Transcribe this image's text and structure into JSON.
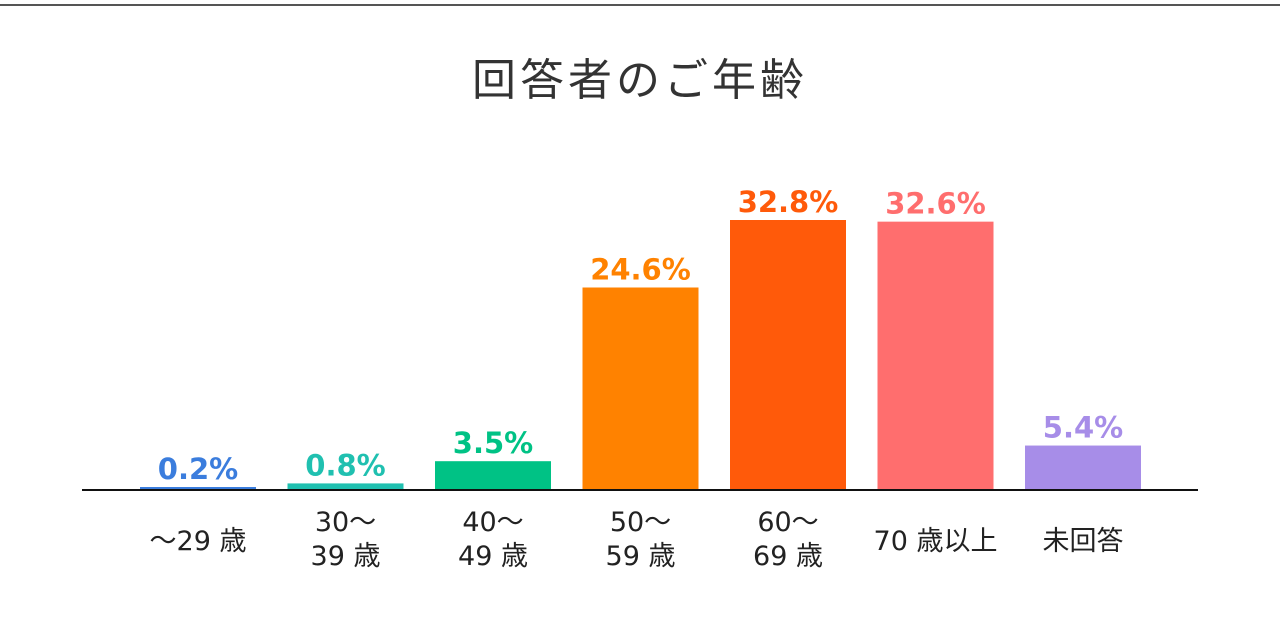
{
  "chart_data": {
    "type": "bar",
    "title": "回答者のご年齢",
    "categories": [
      [
        "～29 歳"
      ],
      [
        "30～",
        "39 歳"
      ],
      [
        "40～",
        "49 歳"
      ],
      [
        "50～",
        "59 歳"
      ],
      [
        "60～",
        "69 歳"
      ],
      [
        "70 歳以上"
      ],
      [
        "未回答"
      ]
    ],
    "values": [
      0.2,
      0.8,
      3.5,
      24.6,
      32.8,
      32.6,
      5.4
    ],
    "value_labels": [
      "0.2%",
      "0.8%",
      "3.5%",
      "24.6%",
      "32.8%",
      "32.6%",
      "5.4%"
    ],
    "colors": [
      "#3b7ddd",
      "#20c0b0",
      "#00c285",
      "#ff8200",
      "#ff5a0a",
      "#ff6e6e",
      "#a78de8"
    ],
    "ylim": [
      0,
      35
    ],
    "xlabel": "",
    "ylabel": "",
    "grid": false
  }
}
